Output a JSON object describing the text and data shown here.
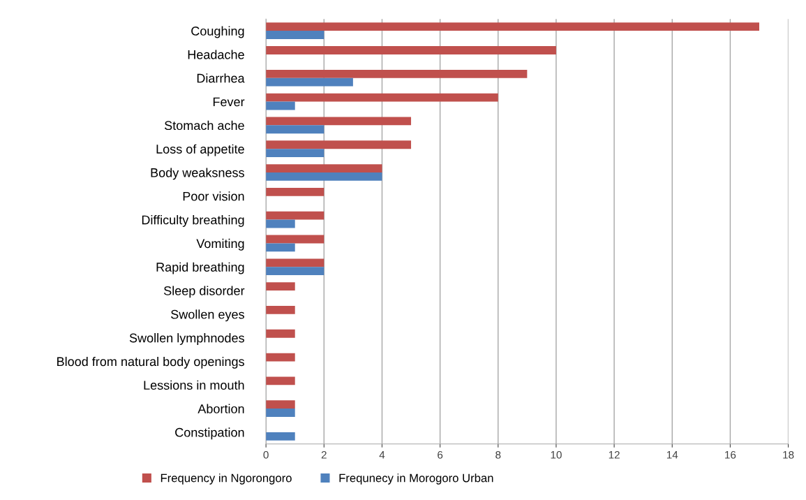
{
  "chart_data": {
    "type": "bar",
    "orientation": "horizontal",
    "categories": [
      "Coughing",
      "Headache",
      "Diarrhea",
      "Fever",
      "Stomach ache",
      "Loss of appetite",
      "Body weaksness",
      "Poor vision",
      "Difficulty breathing",
      "Vomiting",
      "Rapid breathing",
      "Sleep disorder",
      "Swollen eyes",
      "Swollen lymphnodes",
      "Blood from natural body openings",
      "Lessions in mouth",
      "Abortion",
      "Constipation"
    ],
    "series": [
      {
        "name": "Frequency in Ngorongoro",
        "color": "#c0504d",
        "values": [
          17,
          10,
          9,
          8,
          5,
          5,
          4,
          2,
          2,
          2,
          2,
          1,
          1,
          1,
          1,
          1,
          1,
          0
        ]
      },
      {
        "name": "Frequnecy in Morogoro Urban",
        "color": "#4f81bd",
        "values": [
          2,
          0,
          3,
          1,
          2,
          2,
          4,
          0,
          1,
          1,
          2,
          0,
          0,
          0,
          0,
          0,
          1,
          1
        ]
      }
    ],
    "xlim": [
      0,
      18
    ],
    "xticks": [
      0,
      2,
      4,
      6,
      8,
      10,
      12,
      14,
      16,
      18
    ],
    "grid": "x",
    "legend": "bottom"
  }
}
